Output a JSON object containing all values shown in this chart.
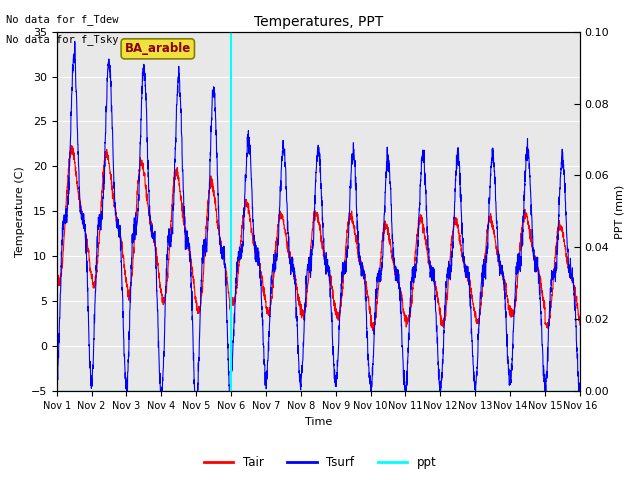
{
  "title": "Temperatures, PPT",
  "xlabel": "Time",
  "ylabel_left": "Temperature (C)",
  "ylabel_right": "PPT (mm)",
  "ylim_left": [
    -5,
    35
  ],
  "ylim_right": [
    0.0,
    0.1
  ],
  "xlim": [
    0,
    15
  ],
  "xtick_labels": [
    "Nov 1",
    "Nov 2",
    "Nov 3",
    "Nov 4",
    "Nov 5",
    "Nov 6",
    "Nov 7",
    "Nov 8",
    "Nov 9",
    "Nov 10",
    "Nov 11",
    "Nov 12",
    "Nov 13",
    "Nov 14",
    "Nov 15",
    "Nov 16"
  ],
  "annotation1": "No data for f_Tdew",
  "annotation2": "No data for f_Tsky",
  "legend_box_label": "BA_arable",
  "vline_x": 5,
  "vline_color": "cyan",
  "tair_color": "red",
  "tsurf_color": "blue",
  "ppt_color": "cyan",
  "bg_color": "#e8e8e8",
  "legend_entries": [
    "Tair",
    "Tsurf",
    "ppt"
  ],
  "n_points": 3000,
  "figsize": [
    6.4,
    4.8
  ],
  "dpi": 100
}
